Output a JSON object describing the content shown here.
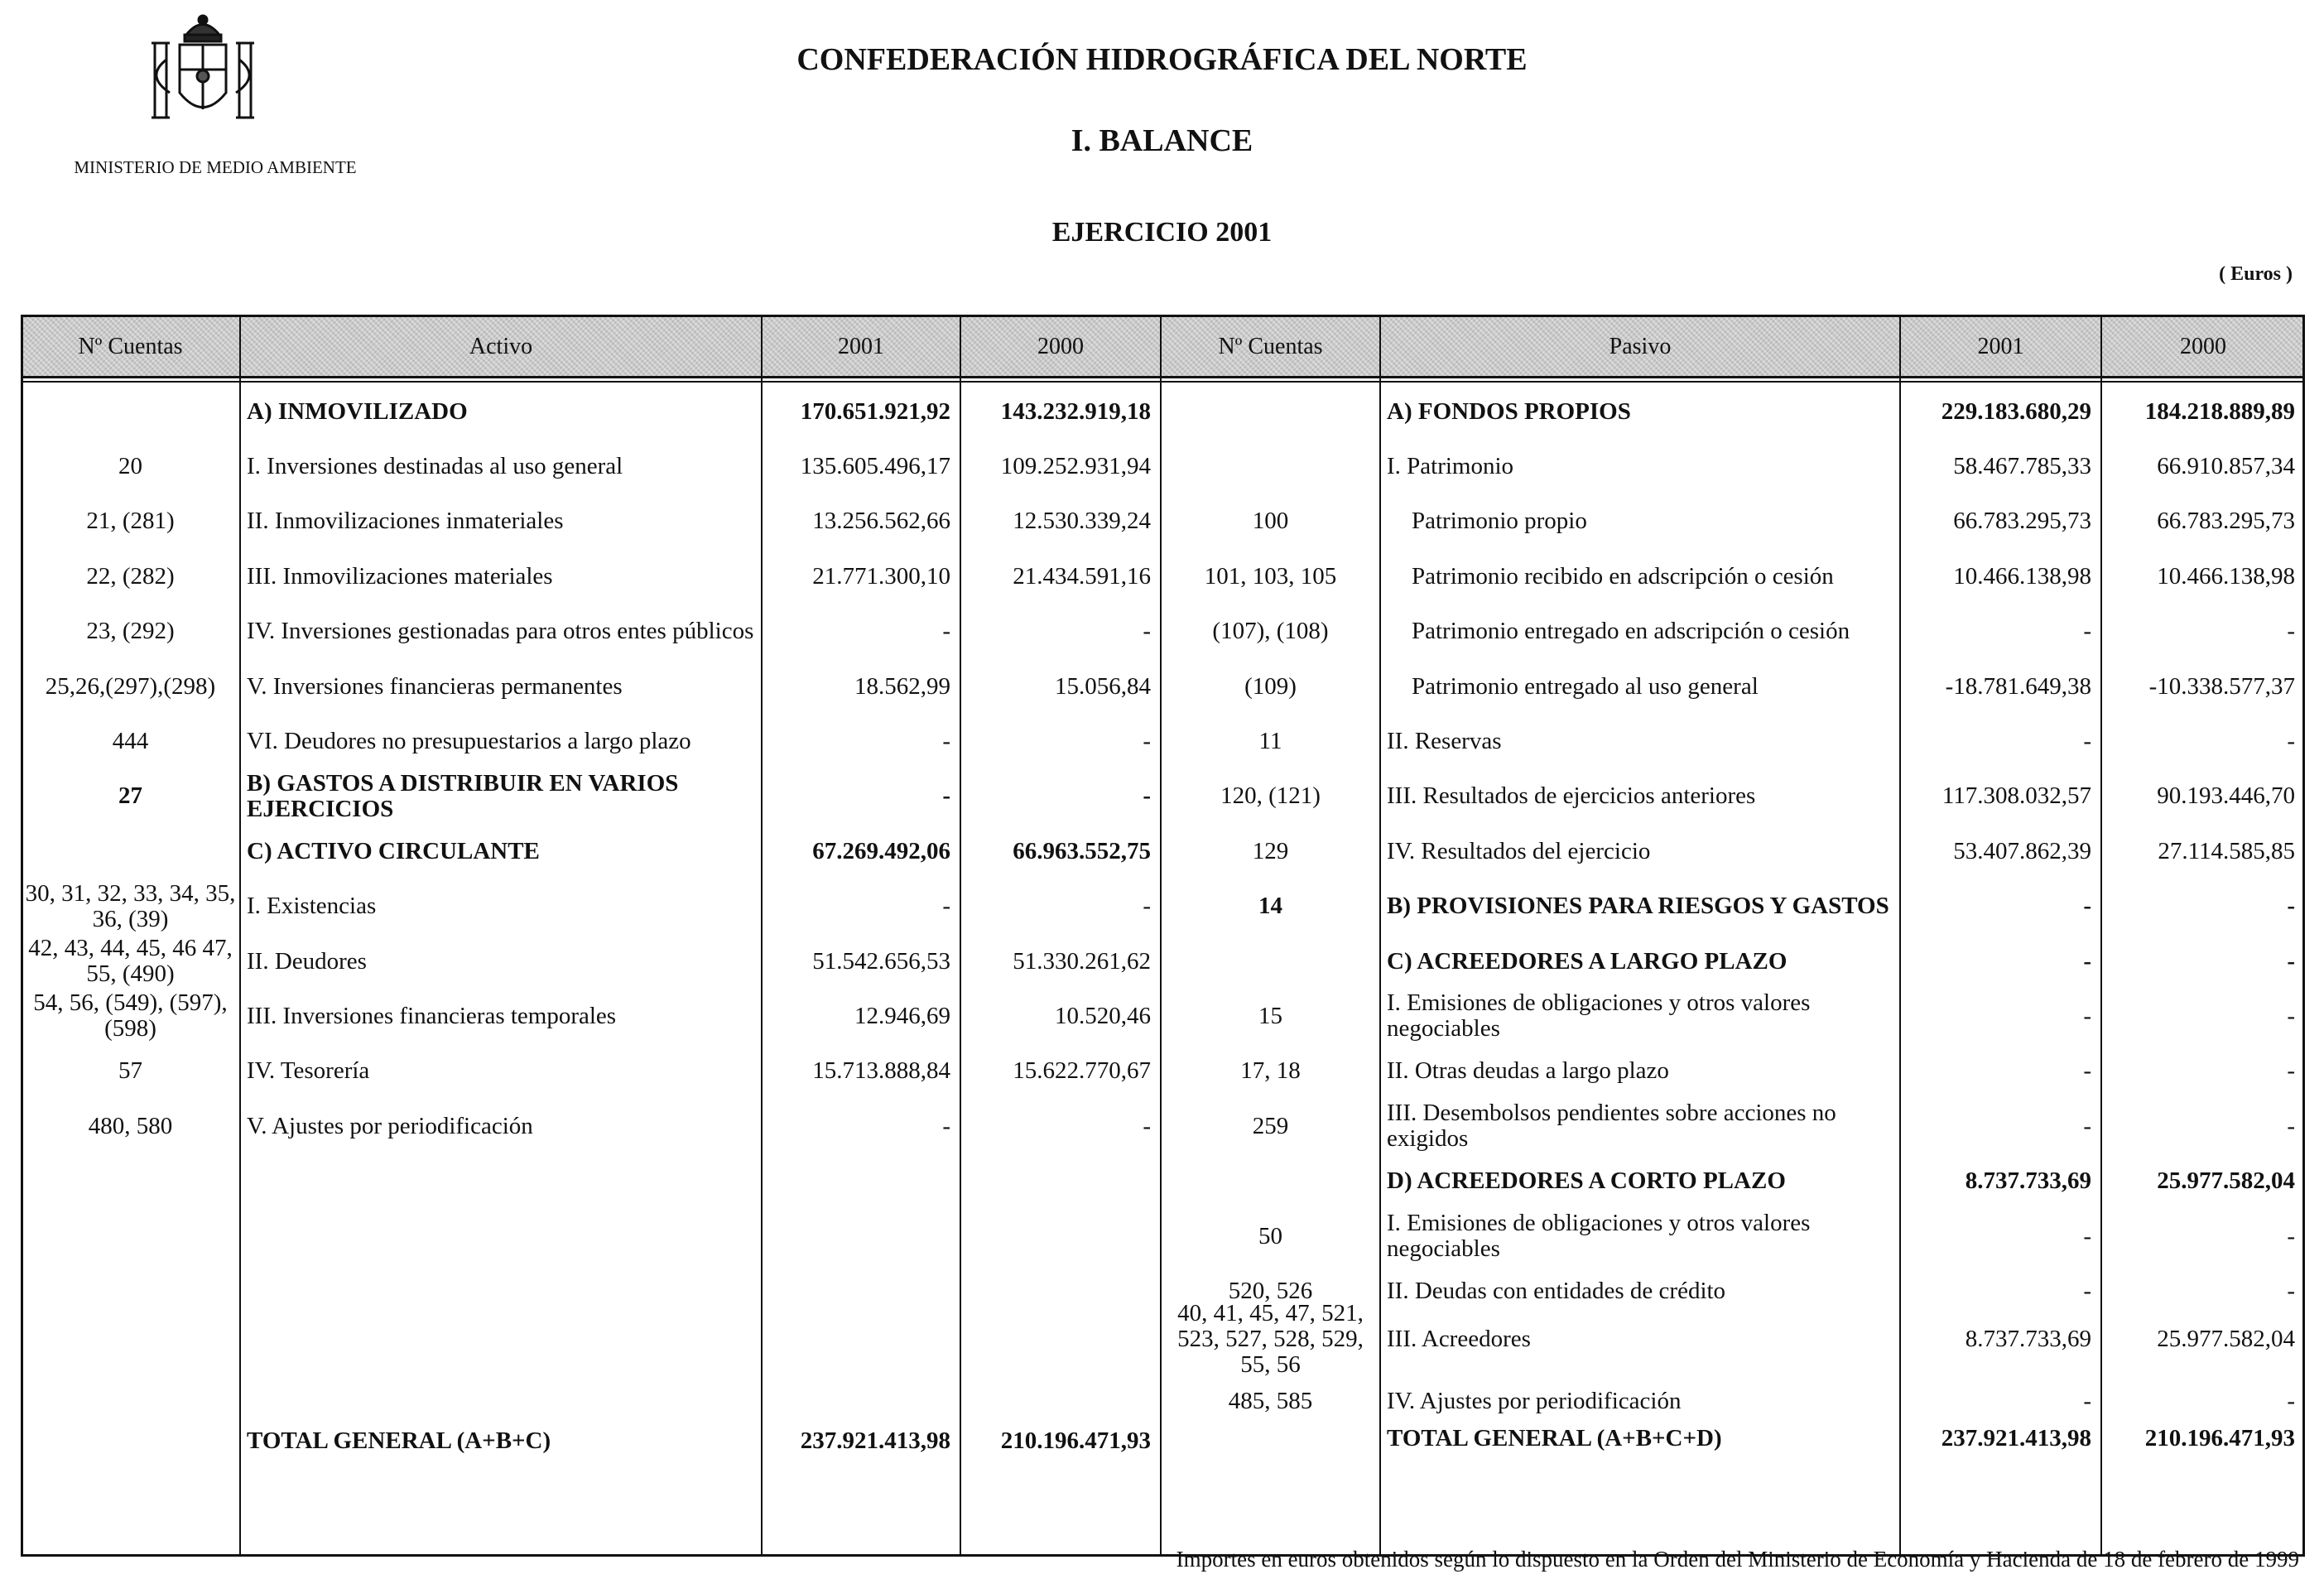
{
  "header": {
    "organization": "CONFEDERACIÓN HIDROGRÁFICA DEL NORTE",
    "section": "I. BALANCE",
    "exercise": "EJERCICIO 2001",
    "ministry": "MINISTERIO DE MEDIO AMBIENTE",
    "units": "( Euros )",
    "logo": "coat-of-arms-of-spain"
  },
  "columns": {
    "left": [
      "Nº Cuentas",
      "Activo",
      "2001",
      "2000"
    ],
    "right": [
      "Nº Cuentas",
      "Pasivo",
      "2001",
      "2000"
    ]
  },
  "activo": [
    {
      "acct": "",
      "label": "A) INMOVILIZADO",
      "y2001": "170.651.921,92",
      "y2000": "143.232.919,18",
      "bold": true
    },
    {
      "acct": "20",
      "label": "I. Inversiones destinadas al uso general",
      "y2001": "135.605.496,17",
      "y2000": "109.252.931,94"
    },
    {
      "acct": "21, (281)",
      "label": "II. Inmovilizaciones inmateriales",
      "y2001": "13.256.562,66",
      "y2000": "12.530.339,24"
    },
    {
      "acct": "22, (282)",
      "label": "III. Inmovilizaciones materiales",
      "y2001": "21.771.300,10",
      "y2000": "21.434.591,16"
    },
    {
      "acct": "23, (292)",
      "label": "IV. Inversiones gestionadas para otros entes públicos",
      "y2001": "-",
      "y2000": "-"
    },
    {
      "acct": "25,26,(297),(298)",
      "label": "V. Inversiones financieras permanentes",
      "y2001": "18.562,99",
      "y2000": "15.056,84"
    },
    {
      "acct": "444",
      "label": "VI. Deudores no presupuestarios a largo plazo",
      "y2001": "-",
      "y2000": "-"
    },
    {
      "acct": "27",
      "label": "B) GASTOS A DISTRIBUIR EN VARIOS EJERCICIOS",
      "y2001": "-",
      "y2000": "-",
      "bold": true
    },
    {
      "acct": "",
      "label": "C) ACTIVO CIRCULANTE",
      "y2001": "67.269.492,06",
      "y2000": "66.963.552,75",
      "bold": true
    },
    {
      "acct": "30, 31, 32, 33, 34, 35, 36, (39)",
      "label": "I. Existencias",
      "y2001": "-",
      "y2000": "-"
    },
    {
      "acct": "42, 43, 44, 45, 46 47, 55, (490)",
      "label": "II. Deudores",
      "y2001": "51.542.656,53",
      "y2000": "51.330.261,62"
    },
    {
      "acct": "54, 56, (549), (597), (598)",
      "label": "III. Inversiones financieras temporales",
      "y2001": "12.946,69",
      "y2000": "10.520,46"
    },
    {
      "acct": "57",
      "label": "IV. Tesorería",
      "y2001": "15.713.888,84",
      "y2000": "15.622.770,67"
    },
    {
      "acct": "480, 580",
      "label": "V. Ajustes por periodificación",
      "y2001": "-",
      "y2000": "-"
    }
  ],
  "activo_total": {
    "label": "TOTAL GENERAL (A+B+C)",
    "y2001": "237.921.413,98",
    "y2000": "210.196.471,93"
  },
  "pasivo": [
    {
      "acct": "",
      "label": "A) FONDOS PROPIOS",
      "y2001": "229.183.680,29",
      "y2000": "184.218.889,89",
      "bold": true
    },
    {
      "acct": "",
      "label": "I. Patrimonio",
      "y2001": "58.467.785,33",
      "y2000": "66.910.857,34"
    },
    {
      "acct": "100",
      "label": "Patrimonio propio",
      "y2001": "66.783.295,73",
      "y2000": "66.783.295,73",
      "indent": true
    },
    {
      "acct": "101, 103, 105",
      "label": "Patrimonio recibido en adscripción o cesión",
      "y2001": "10.466.138,98",
      "y2000": "10.466.138,98",
      "indent": true
    },
    {
      "acct": "(107), (108)",
      "label": "Patrimonio entregado en adscripción o cesión",
      "y2001": "-",
      "y2000": "-",
      "indent": true
    },
    {
      "acct": "(109)",
      "label": "Patrimonio entregado al uso general",
      "y2001": "-18.781.649,38",
      "y2000": "-10.338.577,37",
      "indent": true
    },
    {
      "acct": "11",
      "label": "II. Reservas",
      "y2001": "-",
      "y2000": "-"
    },
    {
      "acct": "120, (121)",
      "label": "III. Resultados de ejercicios anteriores",
      "y2001": "117.308.032,57",
      "y2000": "90.193.446,70"
    },
    {
      "acct": "129",
      "label": "IV. Resultados del ejercicio",
      "y2001": "53.407.862,39",
      "y2000": "27.114.585,85"
    },
    {
      "acct": "14",
      "label": "B) PROVISIONES PARA RIESGOS Y GASTOS",
      "y2001": "-",
      "y2000": "-",
      "bold": true
    },
    {
      "acct": "",
      "label": "C) ACREEDORES A LARGO PLAZO",
      "y2001": "-",
      "y2000": "-",
      "bold": true
    },
    {
      "acct": "15",
      "label": "I. Emisiones de obligaciones y otros valores negociables",
      "y2001": "-",
      "y2000": "-"
    },
    {
      "acct": "17, 18",
      "label": "II. Otras deudas a largo plazo",
      "y2001": "-",
      "y2000": "-"
    },
    {
      "acct": "259",
      "label": "III. Desembolsos pendientes sobre acciones no exigidos",
      "y2001": "-",
      "y2000": "-"
    },
    {
      "acct": "",
      "label": "D) ACREEDORES A CORTO PLAZO",
      "y2001": "8.737.733,69",
      "y2000": "25.977.582,04",
      "bold": true
    },
    {
      "acct": "50",
      "label": "I. Emisiones de obligaciones y otros valores negociables",
      "y2001": "-",
      "y2000": "-"
    },
    {
      "acct": "520, 526",
      "label": "II. Deudas con entidades de crédito",
      "y2001": "-",
      "y2000": "-"
    },
    {
      "acct": "40, 41, 45, 47, 521, 523, 527, 528, 529, 55, 56",
      "label": "III. Acreedores",
      "y2001": "8.737.733,69",
      "y2000": "25.977.582,04"
    },
    {
      "acct": "485, 585",
      "label": "IV. Ajustes por periodificación",
      "y2001": "-",
      "y2000": "-"
    }
  ],
  "pasivo_total": {
    "label": "TOTAL GENERAL (A+B+C+D)",
    "y2001": "237.921.413,98",
    "y2000": "210.196.471,93"
  },
  "footer": "Importes en euros obtenidos según lo dispuesto en la Orden del Ministerio de Economía y Hacienda de 18 de febrero de 1999"
}
